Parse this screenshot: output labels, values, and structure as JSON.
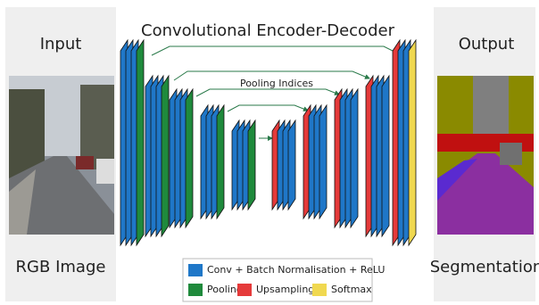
{
  "title": "Convolutional Encoder-Decoder",
  "skip_label": "Pooling Indices",
  "input": {
    "title": "Input",
    "caption": "RGB Image"
  },
  "output": {
    "title": "Output",
    "caption": "Segmentation"
  },
  "legend": [
    "Conv + Batch Normalisation + ReLU",
    "Pooling",
    "Upsampling",
    "Softmax"
  ]
}
